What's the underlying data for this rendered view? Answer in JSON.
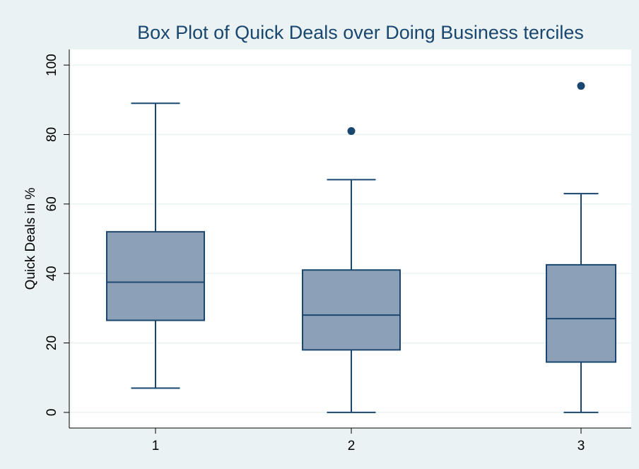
{
  "chart_data": {
    "type": "box",
    "title": "Box Plot of Quick Deals over Doing Business terciles",
    "y_label": "Quick Deals in %",
    "categories": [
      "1",
      "2",
      "3"
    ],
    "boxes": [
      {
        "min": 7,
        "q1": 26.5,
        "median": 37.5,
        "q3": 52,
        "max": 89,
        "outliers": []
      },
      {
        "min": 0,
        "q1": 18,
        "median": 28,
        "q3": 41,
        "max": 67,
        "outliers": [
          81
        ]
      },
      {
        "min": 0,
        "q1": 14.5,
        "median": 27,
        "q3": 42.5,
        "max": 63,
        "outliers": [
          94
        ]
      }
    ],
    "color": "#8ca1b7",
    "line_color": "#1a476f",
    "ylim": [
      -4.5,
      104.5
    ],
    "yticks": [
      0,
      20,
      40,
      60,
      80,
      100
    ],
    "grid": true
  }
}
